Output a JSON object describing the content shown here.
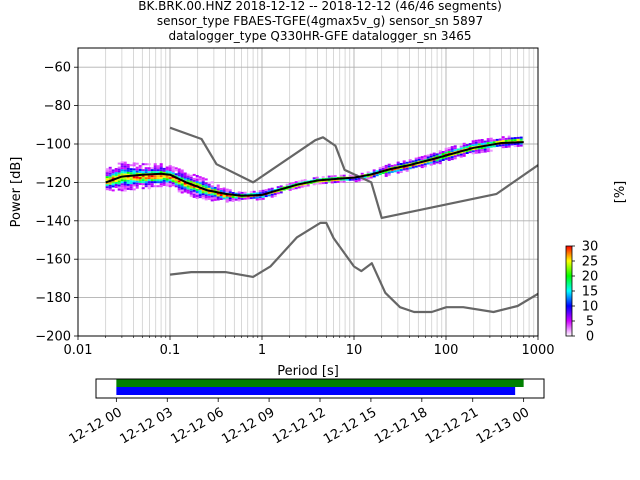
{
  "title_lines": [
    "BK.BRK.00.HNZ   2018-12-12 -- 2018-12-12  (46/46 segments)",
    "sensor_type FBAES-TGFE(4gmax5v_g) sensor_sn 5897",
    "datalogger_type Q330HR-GFE datalogger_sn 3465"
  ],
  "chart_data": [
    {
      "type": "heatmap",
      "name": "ppsd",
      "xlabel": "Period [s]",
      "ylabel": "Power [dB]",
      "x_scale": "log",
      "xlim": [
        0.01,
        1000
      ],
      "ylim": [
        -200,
        -50
      ],
      "x_ticks": [
        0.01,
        0.1,
        1,
        10,
        100,
        1000
      ],
      "x_tick_labels": [
        "0.01",
        "0.1",
        "1",
        "10",
        "100",
        "1000"
      ],
      "y_ticks": [
        -200,
        -180,
        -160,
        -140,
        -120,
        -100,
        -80,
        -60
      ],
      "y_tick_labels": [
        "−200",
        "−180",
        "−160",
        "−140",
        "−120",
        "−100",
        "−80",
        "−60"
      ],
      "grid": true,
      "colorbar": {
        "label": "[%]",
        "range": [
          0,
          30
        ],
        "ticks": [
          0,
          5,
          10,
          15,
          20,
          25,
          30
        ],
        "tick_labels": [
          "0",
          "5",
          "10",
          "15",
          "20",
          "25",
          "30"
        ],
        "colors": [
          "#ffffff",
          "#d000ff",
          "#0000ff",
          "#00ffff",
          "#00ff00",
          "#ffff00",
          "#ff0000"
        ]
      },
      "series": [
        {
          "role": "NHNM",
          "color": "#666666",
          "x": [
            0.1,
            0.22,
            0.32,
            0.8,
            3.8,
            4.6,
            6.3,
            7.9,
            15.4,
            20,
            354.8,
            1000
          ],
          "y": [
            -91.5,
            -97.4,
            -110.5,
            -120,
            -98,
            -96.5,
            -101,
            -113.5,
            -120,
            -138.5,
            -126,
            -111
          ]
        },
        {
          "role": "NLNM",
          "color": "#666666",
          "x": [
            0.1,
            0.17,
            0.4,
            0.8,
            1.24,
            2.4,
            4.3,
            5,
            6,
            10,
            12,
            15.6,
            21.9,
            31.6,
            45,
            70,
            101,
            154,
            328,
            600,
            1000
          ],
          "y": [
            -168,
            -166.7,
            -166.7,
            -169.2,
            -163.7,
            -148.6,
            -141.1,
            -141.1,
            -149,
            -163.8,
            -166.2,
            -162.1,
            -177.5,
            -185,
            -187.5,
            -187.5,
            -185,
            -185,
            -187.5,
            -184.4,
            -178
          ]
        },
        {
          "role": "mean",
          "color": "#000000",
          "x": [
            0.02,
            0.03,
            0.05,
            0.08,
            0.1,
            0.15,
            0.25,
            0.4,
            0.6,
            1,
            1.5,
            2.5,
            4,
            7,
            10,
            15,
            25,
            40,
            70,
            100,
            200,
            400,
            700
          ],
          "y": [
            -120,
            -117,
            -116,
            -115.5,
            -116,
            -120,
            -124,
            -126,
            -127,
            -126.5,
            -124,
            -121,
            -119,
            -118,
            -117.5,
            -116,
            -113,
            -111,
            -108,
            -106,
            -102,
            -99.5,
            -99
          ]
        }
      ],
      "heatmap_band": {
        "x": [
          0.02,
          0.03,
          0.05,
          0.08,
          0.1,
          0.15,
          0.25,
          0.4,
          0.6,
          1,
          1.5,
          2.5,
          4,
          7,
          10,
          15,
          25,
          40,
          70,
          100,
          200,
          400,
          700
        ],
        "upper": [
          -113,
          -109,
          -110,
          -110,
          -111,
          -114,
          -118,
          -123,
          -125,
          -124,
          -122,
          -119,
          -117,
          -116,
          -116,
          -114,
          -110,
          -108,
          -105,
          -102,
          -98,
          -96,
          -95
        ],
        "lower": [
          -125,
          -124,
          -123,
          -122,
          -122,
          -126,
          -129,
          -130,
          -129,
          -129,
          -126,
          -123,
          -121,
          -120,
          -119,
          -118,
          -116,
          -114,
          -111,
          -109,
          -105,
          -102,
          -101
        ]
      }
    },
    {
      "type": "bar",
      "name": "data-coverage",
      "x_tick_labels": [
        "12-12 00",
        "12-12 03",
        "12-12 06",
        "12-12 09",
        "12-12 12",
        "12-12 15",
        "12-12 18",
        "12-12 21",
        "12-13 00"
      ],
      "x_tick_hours": [
        0,
        3,
        6,
        9,
        12,
        15,
        18,
        21,
        24
      ],
      "xlim_hours": [
        -1.2,
        25.2
      ],
      "series": [
        {
          "role": "available-data",
          "color": "#008000",
          "start_hour": 0,
          "end_hour": 24.0
        },
        {
          "role": "used-segments",
          "color": "#0000ff",
          "start_hour": 0,
          "end_hour": 23.5
        }
      ]
    }
  ]
}
